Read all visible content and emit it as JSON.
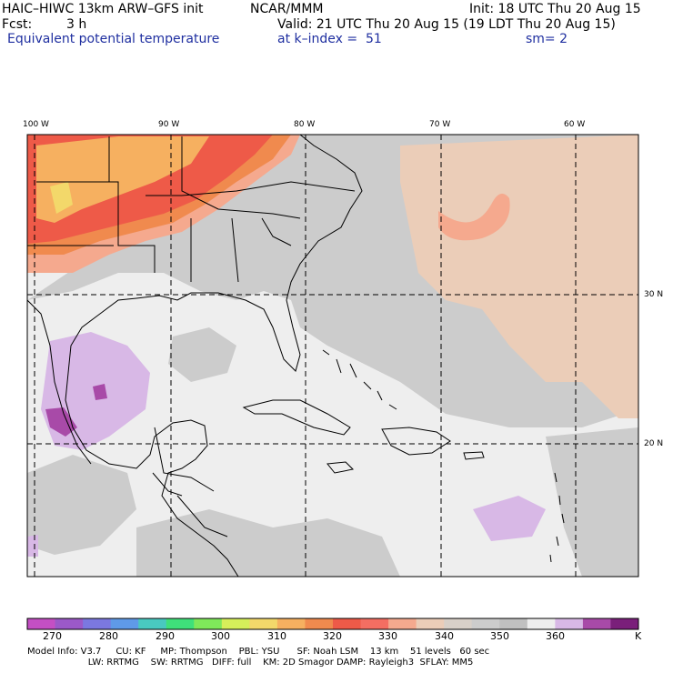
{
  "header": {
    "model": "HAIC–HIWC 13km ARW–GFS init",
    "org": "NCAR/MMM",
    "init": "Init: 18 UTC Thu 20 Aug 15",
    "fcst_label": "Fcst:",
    "fcst_value": "3 h",
    "valid": "Valid: 21 UTC Thu 20 Aug 15 (19 LDT Thu 20 Aug 15)",
    "field": "Equivalent potential temperature",
    "level": "at k–index =  51",
    "smooth": "sm= 2"
  },
  "axes": {
    "lon_labels": [
      "100 W",
      "90 W",
      "80 W",
      "70 W",
      "60 W"
    ],
    "lat_labels": [
      "30 N",
      "20 N"
    ]
  },
  "colorbar": {
    "ticks": [
      "270",
      "280",
      "290",
      "300",
      "310",
      "320",
      "330",
      "340",
      "350",
      "360"
    ],
    "unit": "K",
    "colors": [
      "#c44fc4",
      "#9b59c8",
      "#7b78e0",
      "#5f9ae8",
      "#49c9c0",
      "#3fe07a",
      "#7fe85a",
      "#d6ef5a",
      "#f3d86a",
      "#f6b060",
      "#f08a4e",
      "#ee5a48",
      "#f46e62",
      "#f5a98e",
      "#ebcdb8",
      "#d8d0c8",
      "#cccccc",
      "#c0c0c0",
      "#eeeeee",
      "#d8b8e6",
      "#a84aa8",
      "#7a1f7a"
    ]
  },
  "footer": {
    "line1": "Model Info: V3.7     CU: KF     MP: Thompson    PBL: YSU      SF: Noah LSM    13 km    51 levels   60 sec",
    "line2": "                     LW: RRTMG    SW: RRTMG   DIFF: full    KM: 2D Smagor DAMP: Rayleigh3  SFLAY: MM5"
  }
}
